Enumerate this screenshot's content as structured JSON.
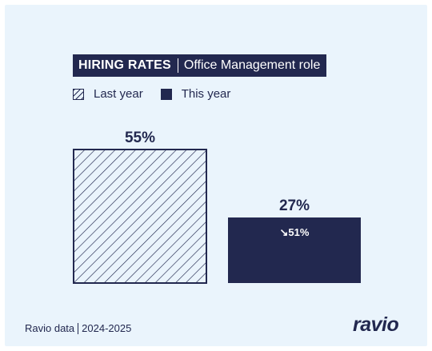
{
  "header": {
    "title": "HIRING RATES",
    "subtitle": "Office Management role"
  },
  "legend": [
    {
      "label": "Last year"
    },
    {
      "label": "This year"
    }
  ],
  "chart_data": {
    "type": "bar",
    "title": "HIRING RATES",
    "subtitle": "Office Management role",
    "categories": [
      "Last year",
      "This year"
    ],
    "values": [
      55,
      27
    ],
    "value_labels": [
      "55%",
      "27%"
    ],
    "change_label": "↘51%",
    "unit": "%",
    "ylim": [
      0,
      55
    ],
    "grid": false,
    "legend_position": "top-left",
    "colors": {
      "last_year": "#22284f",
      "this_year": "#22284f",
      "background": "#eaf4fc"
    },
    "styles": [
      "hatched",
      "solid"
    ]
  },
  "footer": {
    "source": "Ravio data",
    "period": "2024-2025"
  },
  "logo": {
    "text": "ravio"
  }
}
